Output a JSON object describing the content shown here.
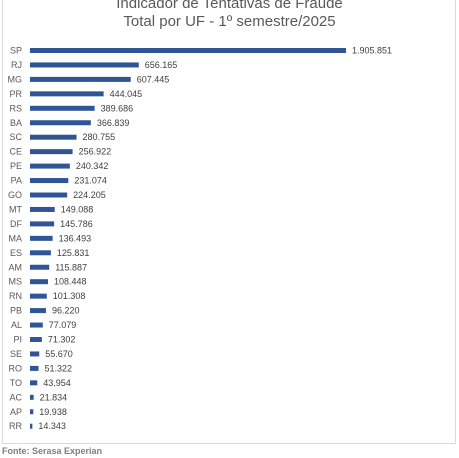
{
  "chart_data": {
    "type": "bar",
    "orientation": "horizontal",
    "title": "Indicador de Tentativas de Fraude",
    "subtitle": "Total por UF - 1º semestre/2025",
    "categories": [
      "SP",
      "RJ",
      "MG",
      "PR",
      "RS",
      "BA",
      "SC",
      "CE",
      "PE",
      "PA",
      "GO",
      "MT",
      "DF",
      "MA",
      "ES",
      "AM",
      "MS",
      "RN",
      "PB",
      "AL",
      "PI",
      "SE",
      "RO",
      "TO",
      "AC",
      "AP",
      "RR"
    ],
    "values": [
      1905851,
      656165,
      607445,
      444045,
      389686,
      366839,
      280755,
      256922,
      240342,
      231074,
      224205,
      149088,
      145786,
      136493,
      125831,
      115887,
      108448,
      101308,
      96220,
      77079,
      71302,
      55670,
      51322,
      43954,
      21834,
      19938,
      14343
    ],
    "value_labels": [
      "1.905.851",
      "656.165",
      "607.445",
      "444.045",
      "389.686",
      "366.839",
      "280.755",
      "256.922",
      "240.342",
      "231.074",
      "224.205",
      "149.088",
      "145.786",
      "136.493",
      "125.831",
      "115.887",
      "108.448",
      "101.308",
      "96.220",
      "77.079",
      "71.302",
      "55.670",
      "51.322",
      "43.954",
      "21.834",
      "19.938",
      "14.343"
    ],
    "bar_color": "#2f5597",
    "grid": false,
    "legend": false
  },
  "source": "Fonte: Serasa Experian"
}
